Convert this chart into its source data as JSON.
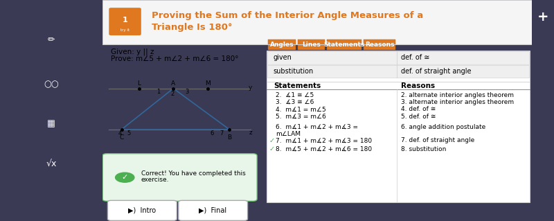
{
  "title_line1": "Proving the Sum of the Interior Angle Measures of a",
  "title_line2": "Triangle Is 180°",
  "title_color": "#e07820",
  "outer_bg": "#3a3a55",
  "given_text": "Given: y || z",
  "prove_text": "Prove: m∠5 + m∠2 + m∠6 = 180°",
  "tabs": [
    "Angles",
    "Lines",
    "Statements",
    "Reasons"
  ],
  "row1_left": "given",
  "row1_right": "def. of ≅",
  "row2_left": "substitution",
  "row2_right": "def. of straight angle",
  "statements_header": "Statements",
  "reasons_header": "Reasons",
  "statements": [
    "2.  ∡1 ≅ ∠5",
    "3.  ∡3 ≅ ∠6",
    "4.  m∡1 = m∠5",
    "5.  m∡3 = m∠6",
    "6.  m∡1 + m∡2 + m∡3 =||      m∠LAM",
    "7.  m∡1 + m∡2 + m∡3 = 180",
    "8.  m∡5 + m∡2 + m∡6 = 180"
  ],
  "reasons": [
    "2. alternate interior angles theorem",
    "3. alternate interior angles theorem",
    "4. def. of ≅",
    "5. def. of ≅",
    "6. angle addition postulate",
    "7. def. of straight angle",
    "8. substitution"
  ],
  "correct_text_1": "Correct! You have completed this",
  "correct_text_2": "exercise.",
  "intro_text": "Intro",
  "final_text": "Final",
  "checkmark": "✓",
  "tri_label_L": "L",
  "tri_label_A": "A",
  "tri_label_M": "M",
  "tri_label_C": "C",
  "tri_label_B": "B",
  "tri_label_y": "y",
  "tri_label_z": "z"
}
